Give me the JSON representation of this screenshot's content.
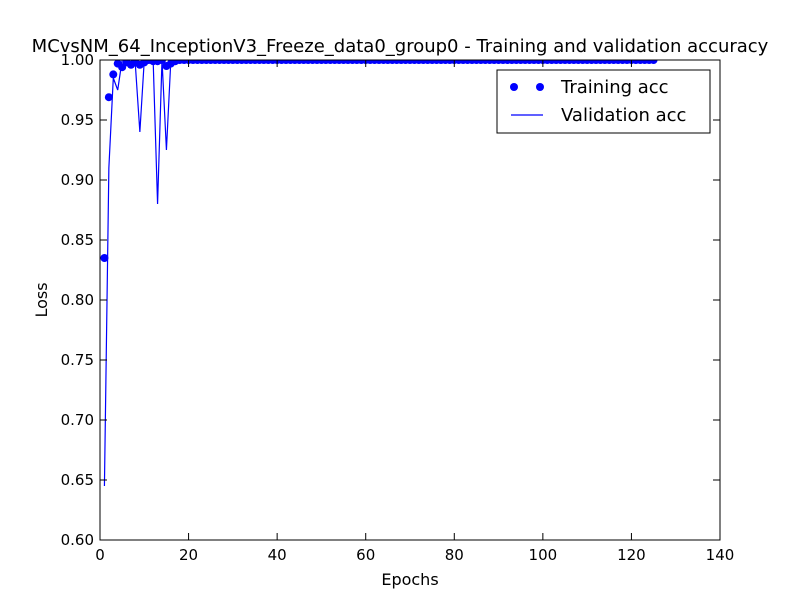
{
  "chart_data": {
    "type": "line",
    "title": "MCvsNM_64_InceptionV3_Freeze_data0_group0 - Training and validation accuracy",
    "xlabel": "Epochs",
    "ylabel": "Loss",
    "xlim": [
      0,
      140
    ],
    "ylim": [
      0.6,
      1.0
    ],
    "xticks": [
      "0",
      "20",
      "40",
      "60",
      "80",
      "100",
      "120",
      "140"
    ],
    "yticks": [
      "0.60",
      "0.65",
      "0.70",
      "0.75",
      "0.80",
      "0.85",
      "0.90",
      "0.95",
      "1.00"
    ],
    "grid": false,
    "legend_position": "top-right",
    "series": [
      {
        "name": "Training acc",
        "style": "markers",
        "color": "#0000ff",
        "x": [
          1,
          2,
          3,
          4,
          5,
          6,
          7,
          8,
          9,
          10,
          11,
          12,
          13,
          14,
          15,
          16,
          17,
          18,
          19,
          20,
          21,
          22,
          23,
          24,
          25,
          26,
          27,
          28,
          29,
          30,
          31,
          32,
          33,
          34,
          35,
          36,
          37,
          38,
          39,
          40,
          41,
          42,
          43,
          44,
          45,
          46,
          47,
          48,
          49,
          50,
          51,
          52,
          53,
          54,
          55,
          56,
          57,
          58,
          59,
          60,
          61,
          62,
          63,
          64,
          65,
          66,
          67,
          68,
          69,
          70,
          71,
          72,
          73,
          74,
          75,
          76,
          77,
          78,
          79,
          80,
          81,
          82,
          83,
          84,
          85,
          86,
          87,
          88,
          89,
          90,
          91,
          92,
          93,
          94,
          95,
          96,
          97,
          98,
          99,
          100,
          101,
          102,
          103,
          104,
          105,
          106,
          107,
          108,
          109,
          110,
          111,
          112,
          113,
          114,
          115,
          116,
          117,
          118,
          119,
          120,
          121,
          122,
          123,
          124,
          125
        ],
        "y": [
          0.835,
          0.969,
          0.988,
          0.997,
          0.994,
          0.998,
          0.996,
          0.998,
          0.996,
          0.998,
          1.0,
          0.999,
          0.999,
          1.0,
          0.995,
          0.997,
          0.999,
          1.0,
          1.0,
          1.0,
          1.0,
          1.0,
          1.0,
          1.0,
          1.0,
          1.0,
          1.0,
          1.0,
          1.0,
          1.0,
          1.0,
          1.0,
          1.0,
          1.0,
          1.0,
          1.0,
          1.0,
          1.0,
          1.0,
          1.0,
          1.0,
          1.0,
          1.0,
          1.0,
          1.0,
          1.0,
          1.0,
          1.0,
          1.0,
          1.0,
          1.0,
          1.0,
          1.0,
          1.0,
          1.0,
          1.0,
          1.0,
          1.0,
          1.0,
          1.0,
          1.0,
          1.0,
          1.0,
          1.0,
          1.0,
          1.0,
          1.0,
          1.0,
          1.0,
          1.0,
          1.0,
          1.0,
          1.0,
          1.0,
          1.0,
          1.0,
          1.0,
          1.0,
          1.0,
          1.0,
          1.0,
          1.0,
          1.0,
          1.0,
          1.0,
          1.0,
          1.0,
          1.0,
          1.0,
          1.0,
          1.0,
          1.0,
          1.0,
          1.0,
          1.0,
          1.0,
          1.0,
          1.0,
          1.0,
          1.0,
          1.0,
          1.0,
          1.0,
          1.0,
          1.0,
          1.0,
          1.0,
          1.0,
          1.0,
          1.0,
          1.0,
          1.0,
          1.0,
          1.0,
          1.0,
          1.0,
          1.0,
          1.0,
          1.0,
          1.0,
          1.0,
          1.0,
          1.0,
          1.0,
          1.0
        ]
      },
      {
        "name": "Validation acc",
        "style": "line",
        "color": "#0000ff",
        "x": [
          1,
          2,
          3,
          4,
          5,
          6,
          7,
          8,
          9,
          10,
          11,
          12,
          13,
          14,
          15,
          16,
          17,
          18,
          19,
          20,
          21,
          22,
          23,
          24,
          25,
          26,
          27,
          28,
          29,
          30,
          31,
          32,
          33,
          34,
          35,
          36,
          37,
          38,
          39,
          40,
          41,
          42,
          43,
          44,
          45,
          46,
          47,
          48,
          49,
          50,
          51,
          52,
          53,
          54,
          55,
          56,
          57,
          58,
          59,
          60,
          61,
          62,
          63,
          64,
          65,
          66,
          67,
          68,
          69,
          70,
          71,
          72,
          73,
          74,
          75,
          76,
          77,
          78,
          79,
          80,
          81,
          82,
          83,
          84,
          85,
          86,
          87,
          88,
          89,
          90,
          91,
          92,
          93,
          94,
          95,
          96,
          97,
          98,
          99,
          100,
          101,
          102,
          103,
          104,
          105,
          106,
          107,
          108,
          109,
          110,
          111,
          112,
          113,
          114,
          115,
          116,
          117,
          118,
          119,
          120,
          121,
          122,
          123,
          124,
          125
        ],
        "y": [
          0.645,
          0.91,
          0.985,
          0.975,
          1.0,
          1.0,
          1.0,
          0.995,
          0.94,
          1.0,
          1.0,
          1.0,
          0.88,
          1.0,
          0.925,
          1.0,
          1.0,
          1.0,
          1.0,
          1.0,
          1.0,
          1.0,
          1.0,
          1.0,
          1.0,
          1.0,
          1.0,
          1.0,
          1.0,
          1.0,
          1.0,
          1.0,
          1.0,
          1.0,
          1.0,
          1.0,
          1.0,
          1.0,
          1.0,
          1.0,
          1.0,
          1.0,
          1.0,
          1.0,
          1.0,
          1.0,
          1.0,
          1.0,
          1.0,
          1.0,
          1.0,
          1.0,
          1.0,
          1.0,
          1.0,
          1.0,
          1.0,
          1.0,
          1.0,
          1.0,
          1.0,
          1.0,
          1.0,
          1.0,
          1.0,
          1.0,
          1.0,
          1.0,
          1.0,
          1.0,
          1.0,
          1.0,
          1.0,
          1.0,
          1.0,
          1.0,
          1.0,
          1.0,
          1.0,
          1.0,
          1.0,
          1.0,
          1.0,
          1.0,
          1.0,
          1.0,
          1.0,
          1.0,
          1.0,
          1.0,
          1.0,
          1.0,
          1.0,
          1.0,
          1.0,
          1.0,
          1.0,
          1.0,
          1.0,
          1.0,
          1.0,
          1.0,
          1.0,
          1.0,
          1.0,
          1.0,
          1.0,
          1.0,
          1.0,
          1.0,
          1.0,
          1.0,
          1.0,
          1.0,
          1.0,
          1.0,
          1.0,
          1.0,
          1.0,
          1.0,
          1.0,
          1.0,
          1.0,
          1.0,
          1.0
        ]
      }
    ]
  }
}
